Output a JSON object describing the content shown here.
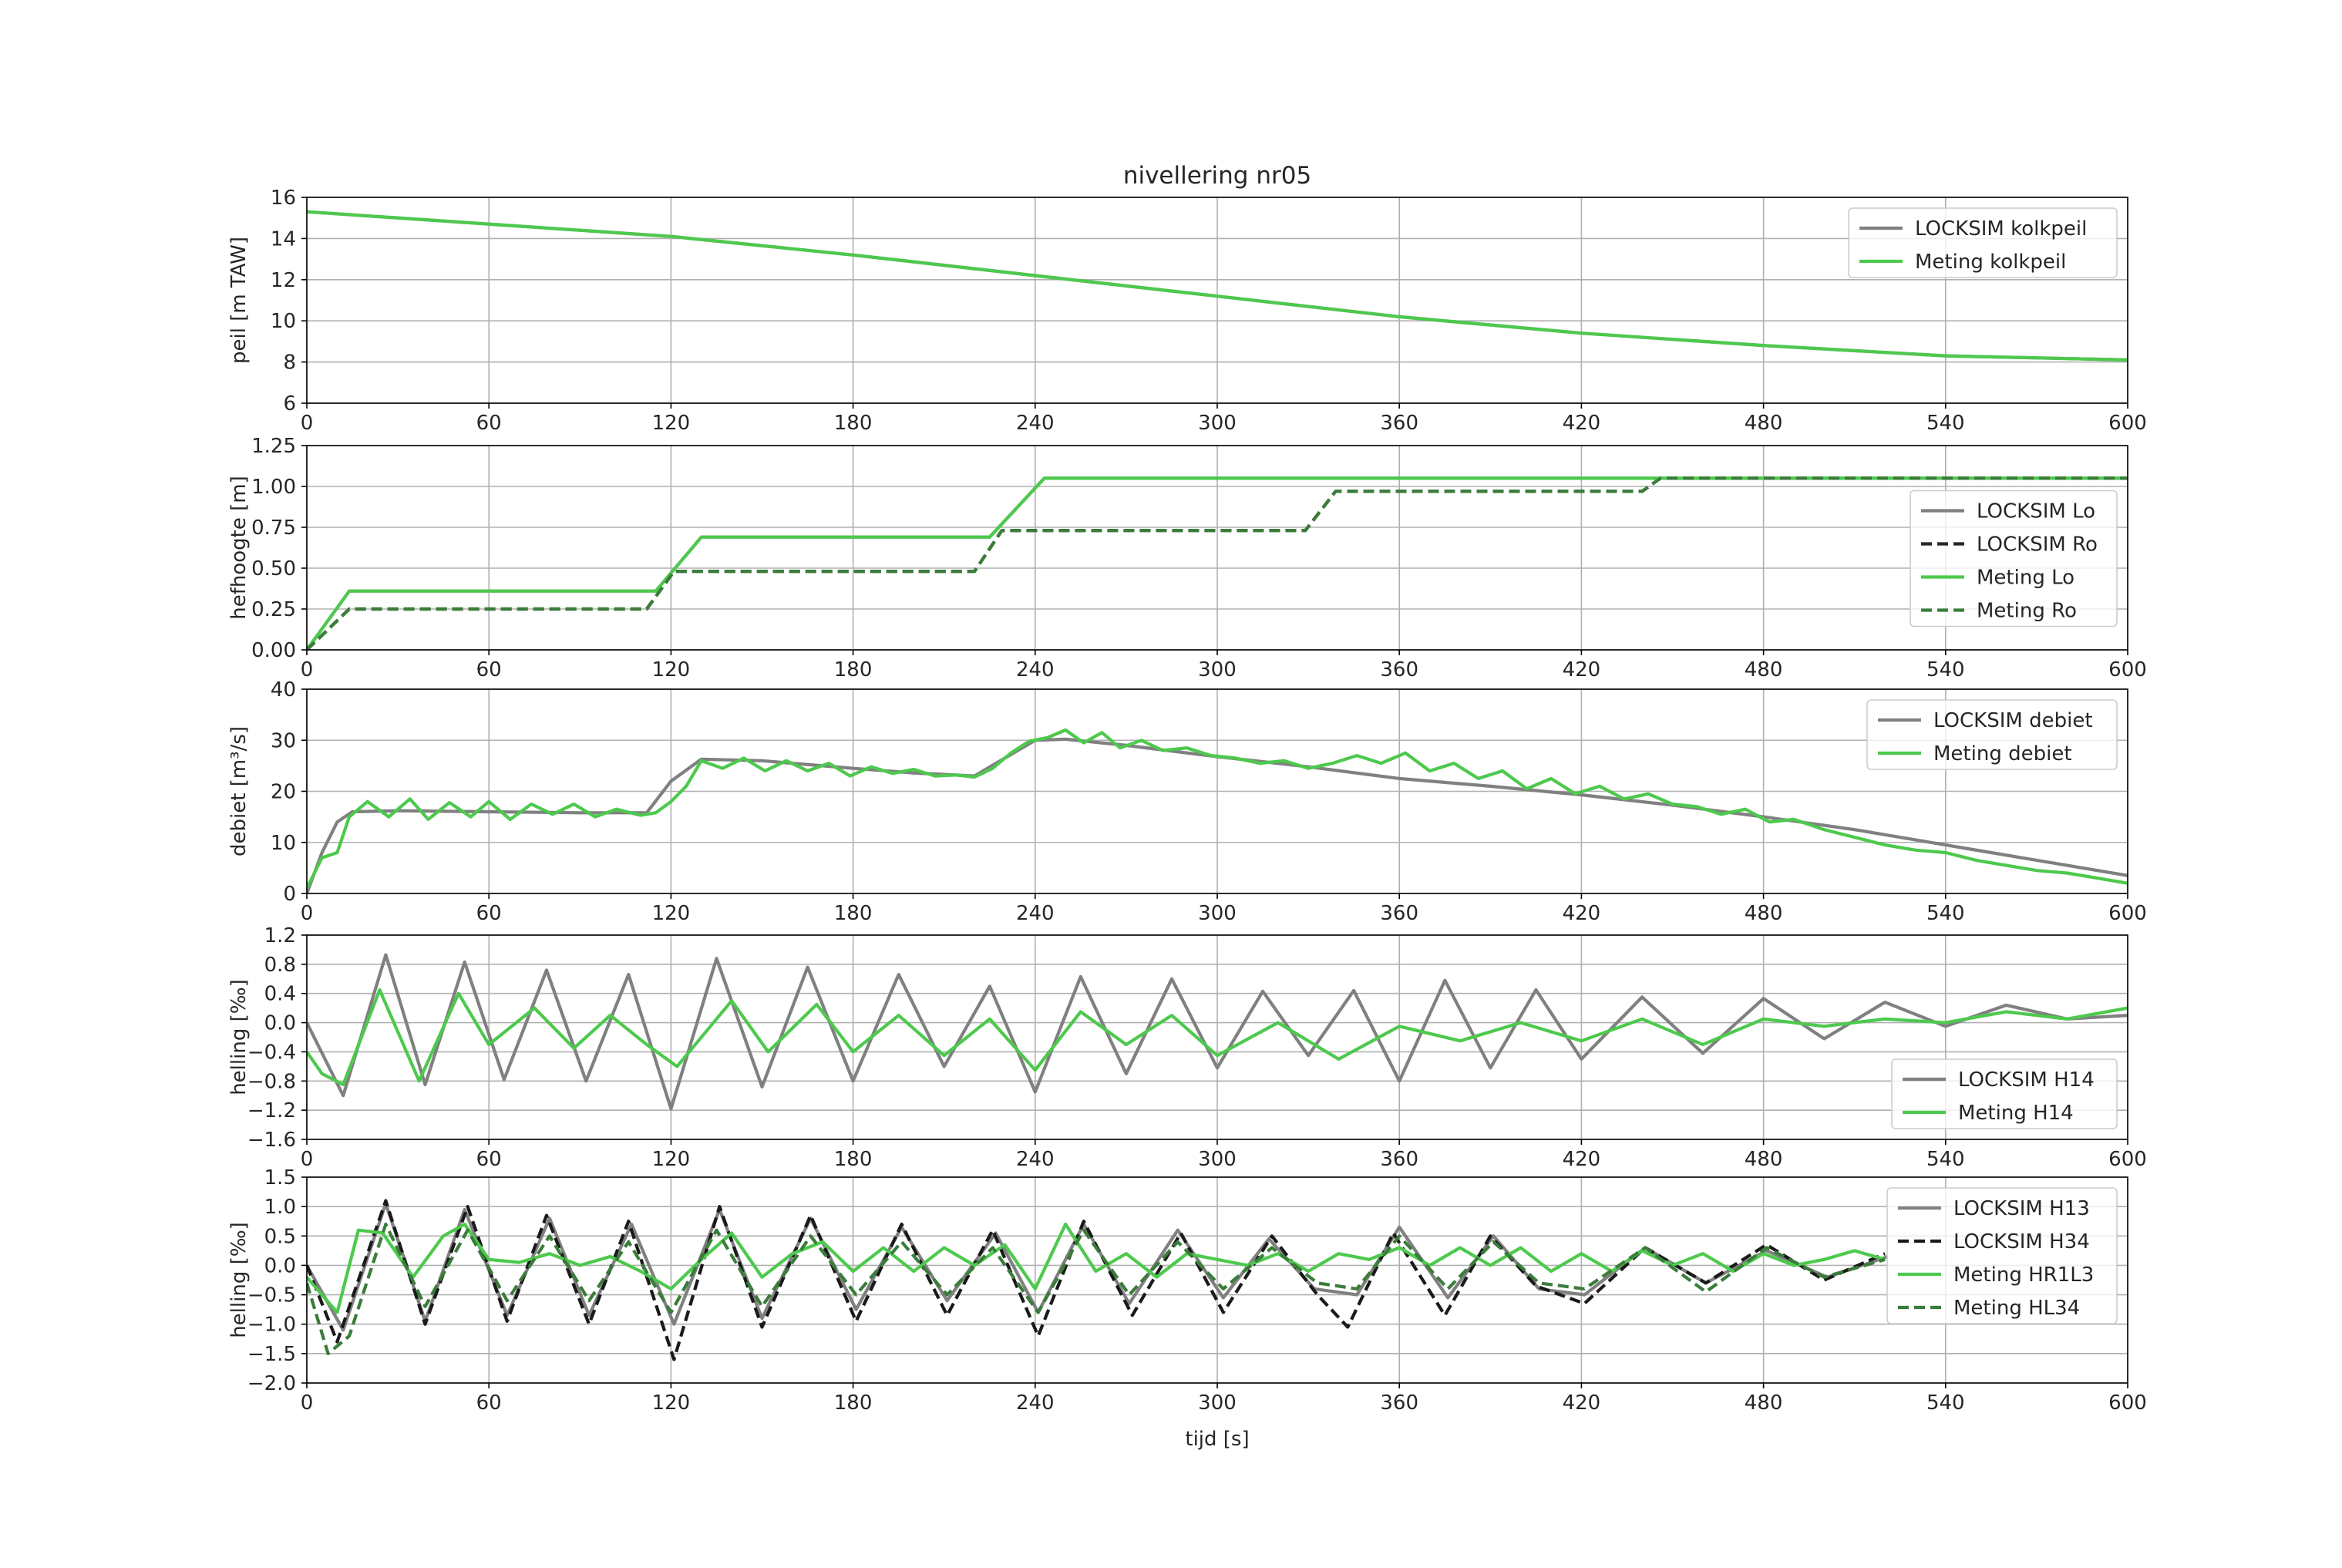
{
  "chart_data": [
    {
      "type": "line",
      "title": "nivellering nr05",
      "xlabel": "",
      "ylabel": "peil [m TAW]",
      "xlim": [
        0,
        600
      ],
      "ylim": [
        6,
        16
      ],
      "xticks": [
        0,
        60,
        120,
        180,
        240,
        300,
        360,
        420,
        480,
        540,
        600
      ],
      "yticks": [
        6,
        8,
        10,
        12,
        14,
        16
      ],
      "ytick_labels": [
        "6",
        "8",
        "10",
        "12",
        "14",
        "16"
      ],
      "grid": true,
      "legend_position": "top-right",
      "series": [
        {
          "name": "LOCKSIM kolkpeil",
          "color": "#808080",
          "dash": "solid",
          "x": [
            0,
            60,
            120,
            180,
            240,
            300,
            360,
            420,
            480,
            540,
            600
          ],
          "y": [
            15.3,
            14.7,
            14.1,
            13.2,
            12.2,
            11.2,
            10.2,
            9.4,
            8.8,
            8.3,
            8.1
          ]
        },
        {
          "name": "Meting kolkpeil",
          "color": "#4dc94d",
          "dash": "solid",
          "x": [
            0,
            60,
            120,
            180,
            240,
            300,
            360,
            420,
            480,
            540,
            600
          ],
          "y": [
            15.3,
            14.7,
            14.1,
            13.2,
            12.2,
            11.2,
            10.2,
            9.4,
            8.8,
            8.3,
            8.1
          ]
        }
      ]
    },
    {
      "type": "line",
      "title": "",
      "xlabel": "",
      "ylabel": "hefhoogte [m]",
      "xlim": [
        0,
        600
      ],
      "ylim": [
        0,
        1.25
      ],
      "xticks": [
        0,
        60,
        120,
        180,
        240,
        300,
        360,
        420,
        480,
        540,
        600
      ],
      "yticks": [
        0,
        0.25,
        0.5,
        0.75,
        1.0,
        1.25
      ],
      "ytick_labels": [
        "0.00",
        "0.25",
        "0.50",
        "0.75",
        "1.00",
        "1.25"
      ],
      "grid": true,
      "legend_position": "center-right",
      "series": [
        {
          "name": "LOCKSIM Lo",
          "color": "#808080",
          "dash": "solid",
          "x": [
            0,
            14,
            115,
            130,
            225,
            243,
            600
          ],
          "y": [
            0,
            0.36,
            0.36,
            0.69,
            0.69,
            1.05,
            1.05
          ]
        },
        {
          "name": "LOCKSIM Ro",
          "color": "#262626",
          "dash": "dashed",
          "x": [
            0,
            14,
            112,
            121,
            220,
            229,
            329,
            339,
            440,
            446,
            600
          ],
          "y": [
            0,
            0.25,
            0.25,
            0.48,
            0.48,
            0.73,
            0.73,
            0.97,
            0.97,
            1.05,
            1.05
          ]
        },
        {
          "name": "Meting Lo",
          "color": "#4dc94d",
          "dash": "solid",
          "x": [
            0,
            14,
            115,
            130,
            225,
            243,
            600
          ],
          "y": [
            0,
            0.36,
            0.36,
            0.69,
            0.69,
            1.05,
            1.05
          ]
        },
        {
          "name": "Meting Ro",
          "color": "#3a7d3a",
          "dash": "dashed",
          "x": [
            0,
            14,
            112,
            121,
            220,
            229,
            329,
            339,
            440,
            446,
            600
          ],
          "y": [
            0,
            0.25,
            0.25,
            0.48,
            0.48,
            0.73,
            0.73,
            0.97,
            0.97,
            1.05,
            1.05
          ]
        }
      ]
    },
    {
      "type": "line",
      "title": "",
      "xlabel": "",
      "ylabel": "debiet [m³/s]",
      "xlim": [
        0,
        600
      ],
      "ylim": [
        0,
        40
      ],
      "xticks": [
        0,
        60,
        120,
        180,
        240,
        300,
        360,
        420,
        480,
        540,
        600
      ],
      "yticks": [
        0,
        10,
        20,
        30,
        40
      ],
      "ytick_labels": [
        "0",
        "10",
        "20",
        "30",
        "40"
      ],
      "grid": true,
      "legend_position": "top-right",
      "series": [
        {
          "name": "LOCKSIM debiet",
          "color": "#808080",
          "dash": "solid",
          "x": [
            0,
            5,
            10,
            15,
            30,
            60,
            90,
            112,
            120,
            130,
            150,
            180,
            200,
            220,
            230,
            240,
            250,
            270,
            300,
            330,
            360,
            390,
            420,
            450,
            480,
            510,
            540,
            570,
            600
          ],
          "y": [
            0,
            8,
            14,
            16,
            16.2,
            16,
            15.8,
            15.8,
            22,
            26.3,
            26,
            24.5,
            23.6,
            23,
            26.5,
            30,
            30.2,
            29,
            26.8,
            24.8,
            22.5,
            21,
            19.3,
            17.3,
            15,
            12.5,
            9.5,
            6.5,
            3.5
          ]
        },
        {
          "name": "Meting debiet",
          "color": "#4dc94d",
          "dash": "solid",
          "x": [
            0,
            5,
            10,
            14,
            20,
            27,
            34,
            40,
            47,
            54,
            60,
            67,
            74,
            81,
            88,
            95,
            102,
            110,
            115,
            120,
            125,
            130,
            137,
            144,
            151,
            158,
            165,
            172,
            179,
            186,
            193,
            200,
            207,
            214,
            220,
            226,
            232,
            238,
            244,
            250,
            256,
            262,
            268,
            275,
            282,
            290,
            298,
            306,
            314,
            322,
            330,
            338,
            346,
            354,
            362,
            370,
            378,
            386,
            394,
            402,
            410,
            418,
            426,
            434,
            442,
            450,
            458,
            466,
            474,
            482,
            490,
            500,
            510,
            520,
            530,
            540,
            550,
            560,
            570,
            580,
            590,
            600
          ],
          "y": [
            1,
            7,
            8,
            15,
            18,
            15,
            18.5,
            14.5,
            17.8,
            15,
            18,
            14.5,
            17.5,
            15.5,
            17.5,
            15,
            16.5,
            15.3,
            15.8,
            18,
            21,
            26,
            24.5,
            26.5,
            24,
            26,
            24,
            25.5,
            23,
            24.8,
            23.5,
            24.3,
            23,
            23.2,
            22.8,
            24.5,
            27.5,
            29.8,
            30.5,
            32,
            29.5,
            31.5,
            28.5,
            30,
            28,
            28.5,
            27,
            26.5,
            25.5,
            26,
            24.5,
            25.5,
            27,
            25.5,
            27.5,
            24,
            25.5,
            22.5,
            24,
            20.5,
            22.5,
            19.5,
            21,
            18.5,
            19.5,
            17.5,
            17,
            15.5,
            16.5,
            14,
            14.5,
            12.5,
            11,
            9.5,
            8.5,
            8,
            6.5,
            5.5,
            4.5,
            4,
            3,
            2
          ]
        }
      ]
    },
    {
      "type": "line",
      "title": "",
      "xlabel": "",
      "ylabel": "helling [‰]",
      "xlim": [
        0,
        600
      ],
      "ylim": [
        -1.6,
        1.2
      ],
      "xticks": [
        0,
        60,
        120,
        180,
        240,
        300,
        360,
        420,
        480,
        540,
        600
      ],
      "yticks": [
        -1.6,
        -1.2,
        -0.8,
        -0.4,
        0.0,
        0.4,
        0.8,
        1.2
      ],
      "ytick_labels": [
        "−1.6",
        "−1.2",
        "−0.8",
        "−0.4",
        "0.0",
        "0.4",
        "0.8",
        "1.2"
      ],
      "grid": true,
      "legend_position": "bottom-right",
      "series": [
        {
          "name": "LOCKSIM H14",
          "color": "#808080",
          "dash": "solid",
          "x": [
            0,
            12,
            26,
            39,
            52,
            65,
            79,
            92,
            106,
            120,
            135,
            150,
            165,
            180,
            195,
            210,
            225,
            240,
            255,
            270,
            285,
            300,
            315,
            330,
            345,
            360,
            375,
            390,
            405,
            420,
            440,
            460,
            480,
            500,
            520,
            540,
            560,
            580,
            600
          ],
          "y": [
            0,
            -1.0,
            0.93,
            -0.85,
            0.83,
            -0.78,
            0.72,
            -0.8,
            0.66,
            -1.18,
            0.88,
            -0.88,
            0.76,
            -0.8,
            0.66,
            -0.6,
            0.5,
            -0.95,
            0.63,
            -0.7,
            0.6,
            -0.62,
            0.43,
            -0.45,
            0.44,
            -0.8,
            0.58,
            -0.62,
            0.45,
            -0.5,
            0.35,
            -0.42,
            0.33,
            -0.22,
            0.28,
            -0.05,
            0.24,
            0.05,
            0.1
          ]
        },
        {
          "name": "Meting H14",
          "color": "#4dc94d",
          "dash": "solid",
          "x": [
            0,
            5,
            12,
            24,
            37,
            50,
            60,
            75,
            88,
            100,
            112,
            122,
            140,
            152,
            168,
            180,
            195,
            210,
            225,
            240,
            255,
            270,
            285,
            300,
            320,
            340,
            360,
            380,
            400,
            420,
            440,
            460,
            480,
            500,
            520,
            540,
            560,
            580,
            600
          ],
          "y": [
            -0.4,
            -0.7,
            -0.85,
            0.45,
            -0.8,
            0.4,
            -0.3,
            0.2,
            -0.35,
            0.1,
            -0.3,
            -0.6,
            0.3,
            -0.4,
            0.25,
            -0.4,
            0.1,
            -0.45,
            0.05,
            -0.65,
            0.15,
            -0.3,
            0.1,
            -0.45,
            0.0,
            -0.5,
            -0.05,
            -0.25,
            0.0,
            -0.25,
            0.05,
            -0.3,
            0.05,
            -0.05,
            0.05,
            0.0,
            0.15,
            0.05,
            0.2
          ]
        }
      ]
    },
    {
      "type": "line",
      "title": "",
      "xlabel": "tijd [s]",
      "ylabel": "helling [‰]",
      "xlim": [
        0,
        600
      ],
      "ylim": [
        -2.0,
        1.5
      ],
      "xticks": [
        0,
        60,
        120,
        180,
        240,
        300,
        360,
        420,
        480,
        540,
        600
      ],
      "yticks": [
        -2.0,
        -1.5,
        -1.0,
        -0.5,
        0.0,
        0.5,
        1.0,
        1.5
      ],
      "ytick_labels": [
        "−2.0",
        "−1.5",
        "−1.0",
        "−0.5",
        "0.0",
        "0.5",
        "1.0",
        "1.5"
      ],
      "grid": true,
      "legend_position": "top-right",
      "series": [
        {
          "name": "LOCKSIM H13",
          "color": "#808080",
          "dash": "solid",
          "x": [
            0,
            12,
            26,
            39,
            52,
            66,
            80,
            93,
            107,
            121,
            136,
            150,
            166,
            181,
            196,
            211,
            227,
            241,
            256,
            271,
            287,
            302,
            317,
            332,
            346,
            360,
            376,
            391,
            406,
            421,
            441,
            461,
            481,
            501,
            521
          ],
          "y": [
            0,
            -1.1,
            1.05,
            -0.95,
            0.95,
            -0.85,
            0.8,
            -0.85,
            0.7,
            -1.0,
            0.95,
            -0.9,
            0.8,
            -0.75,
            0.65,
            -0.6,
            0.55,
            -0.8,
            0.7,
            -0.65,
            0.6,
            -0.55,
            0.45,
            -0.4,
            -0.5,
            0.65,
            -0.55,
            0.5,
            -0.4,
            -0.5,
            0.3,
            -0.3,
            0.25,
            -0.2,
            0.15
          ]
        },
        {
          "name": "LOCKSIM H34",
          "color": "#1a1a1a",
          "dash": "dashed",
          "x": [
            0,
            10,
            26,
            39,
            53,
            66,
            79,
            93,
            106,
            121,
            136,
            150,
            166,
            181,
            196,
            211,
            226,
            241,
            256,
            272,
            288,
            302,
            318,
            333,
            343,
            358,
            375,
            390,
            405,
            421,
            441,
            461,
            481,
            500,
            520
          ],
          "y": [
            0,
            -1.3,
            1.1,
            -1.0,
            1.0,
            -0.95,
            0.85,
            -1.0,
            0.75,
            -1.6,
            1.0,
            -1.05,
            0.85,
            -0.95,
            0.7,
            -0.85,
            0.6,
            -1.2,
            0.75,
            -0.85,
            0.55,
            -0.8,
            0.5,
            -0.5,
            -1.05,
            0.55,
            -0.85,
            0.5,
            -0.35,
            -0.65,
            0.3,
            -0.3,
            0.35,
            -0.25,
            0.2
          ]
        },
        {
          "name": "Meting HR1L3",
          "color": "#4dc94d",
          "dash": "solid",
          "x": [
            0,
            5,
            10,
            17,
            25,
            35,
            45,
            52,
            60,
            70,
            80,
            90,
            100,
            110,
            120,
            130,
            140,
            150,
            160,
            170,
            180,
            190,
            200,
            210,
            220,
            230,
            240,
            250,
            260,
            270,
            280,
            290,
            300,
            310,
            320,
            330,
            340,
            350,
            360,
            370,
            380,
            390,
            400,
            410,
            420,
            430,
            440,
            450,
            460,
            470,
            480,
            490,
            500,
            510,
            520
          ],
          "y": [
            -0.2,
            -0.5,
            -0.8,
            0.6,
            0.55,
            -0.2,
            0.5,
            0.7,
            0.1,
            0.05,
            0.2,
            0.0,
            0.15,
            -0.1,
            -0.4,
            0.1,
            0.55,
            -0.2,
            0.2,
            0.4,
            -0.1,
            0.3,
            -0.1,
            0.3,
            0.0,
            0.35,
            -0.4,
            0.7,
            -0.1,
            0.2,
            -0.2,
            0.2,
            0.1,
            0.0,
            0.2,
            -0.1,
            0.2,
            0.1,
            0.3,
            0.0,
            0.3,
            0.0,
            0.3,
            -0.1,
            0.2,
            -0.1,
            0.25,
            0.0,
            0.2,
            -0.1,
            0.2,
            0.0,
            0.1,
            0.25,
            0.1
          ]
        },
        {
          "name": "Meting HL34",
          "color": "#3a7d3a",
          "dash": "dashed",
          "x": [
            0,
            7,
            14,
            26,
            39,
            53,
            66,
            80,
            93,
            106,
            120,
            135,
            150,
            166,
            181,
            196,
            211,
            226,
            241,
            256,
            271,
            287,
            302,
            318,
            333,
            346,
            360,
            376,
            391,
            406,
            421,
            441,
            461,
            481,
            500,
            520
          ],
          "y": [
            -0.3,
            -1.5,
            -1.2,
            0.7,
            -0.7,
            0.6,
            -0.6,
            0.5,
            -0.6,
            0.4,
            -0.8,
            0.6,
            -0.7,
            0.5,
            -0.5,
            0.4,
            -0.5,
            0.3,
            -0.8,
            0.6,
            -0.5,
            0.4,
            -0.4,
            0.3,
            -0.3,
            -0.4,
            0.5,
            -0.4,
            0.4,
            -0.3,
            -0.4,
            0.3,
            -0.45,
            0.3,
            -0.2,
            0.1
          ]
        }
      ]
    }
  ]
}
